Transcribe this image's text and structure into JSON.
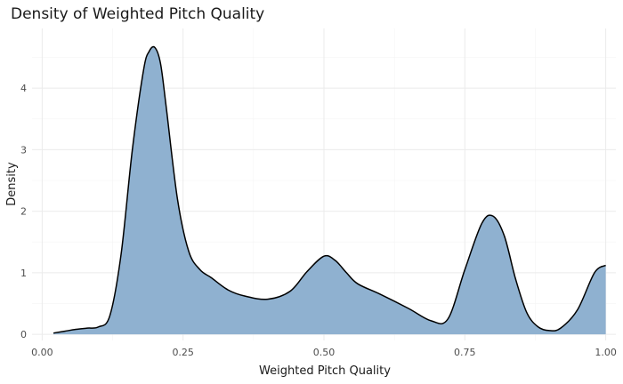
{
  "chart_data": {
    "type": "area",
    "title": "Density of Weighted Pitch Quality",
    "xlabel": "Weighted Pitch Quality",
    "ylabel": "Density",
    "xlim": [
      -0.018,
      1.018
    ],
    "ylim": [
      -0.1,
      4.97
    ],
    "x_ticks": [
      0.0,
      0.25,
      0.5,
      0.75,
      1.0
    ],
    "x_tick_labels": [
      "0.00",
      "0.25",
      "0.50",
      "0.75",
      "1.00"
    ],
    "y_ticks": [
      0,
      1,
      2,
      3,
      4
    ],
    "y_tick_labels": [
      "0",
      "1",
      "2",
      "3",
      "4"
    ],
    "grid": true,
    "fill_color": "#8fb1d0",
    "line_color": "#000000",
    "series": [
      {
        "x": [
          0.02,
          0.04,
          0.06,
          0.08,
          0.1,
          0.12,
          0.14,
          0.16,
          0.18,
          0.19,
          0.2,
          0.21,
          0.22,
          0.24,
          0.26,
          0.28,
          0.3,
          0.33,
          0.36,
          0.4,
          0.44,
          0.47,
          0.5,
          0.52,
          0.54,
          0.56,
          0.6,
          0.65,
          0.69,
          0.72,
          0.75,
          0.78,
          0.8,
          0.82,
          0.84,
          0.86,
          0.88,
          0.9,
          0.92,
          0.95,
          0.98,
          1.0
        ],
        "y": [
          0.02,
          0.05,
          0.08,
          0.1,
          0.12,
          0.3,
          1.3,
          3.0,
          4.3,
          4.6,
          4.66,
          4.4,
          3.7,
          2.2,
          1.35,
          1.05,
          0.92,
          0.72,
          0.62,
          0.57,
          0.7,
          1.02,
          1.27,
          1.2,
          1.0,
          0.82,
          0.65,
          0.42,
          0.22,
          0.25,
          1.05,
          1.8,
          1.92,
          1.6,
          0.9,
          0.35,
          0.12,
          0.06,
          0.1,
          0.4,
          1.0,
          1.12
        ]
      }
    ]
  }
}
